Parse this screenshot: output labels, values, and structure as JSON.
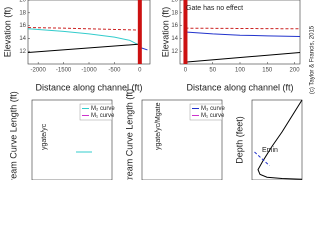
{
  "credit": "(c) Taylor & Francis, 2015",
  "chart_data": [
    {
      "type": "line",
      "xlabel": "Distance along channel (ft)",
      "ylabel": "Elevation (ft)",
      "xlim": [
        -2200,
        200
      ],
      "ylim": [
        10,
        20
      ],
      "xticks": [
        -2000,
        -1500,
        -1000,
        -500,
        0
      ],
      "yticks": [
        12,
        14,
        16,
        18,
        20
      ],
      "series": [
        {
          "color": "#cc2222",
          "dash": true,
          "x": [
            -2200,
            -1500,
            -1000,
            -500,
            0
          ],
          "values": [
            15.7,
            15.6,
            15.5,
            15.4,
            15.3
          ]
        },
        {
          "color": "#33cccc",
          "x": [
            -2200,
            -1500,
            -1000,
            -500,
            -200,
            -50
          ],
          "values": [
            15.5,
            15.1,
            14.7,
            14.2,
            13.7,
            13.1
          ]
        },
        {
          "color": "#000000",
          "x": [
            -2200,
            0
          ],
          "values": [
            11.8,
            13.1
          ]
        },
        {
          "color": "#2233cc",
          "x": [
            0,
            150
          ],
          "values": [
            12.6,
            12.2
          ]
        },
        {
          "color": "#cc1111",
          "width": 4,
          "x": [
            0,
            0
          ],
          "values": [
            10,
            20
          ]
        }
      ]
    },
    {
      "type": "line",
      "xlabel": "Distance along channel (ft)",
      "ylabel": "Elevation (ft)",
      "xlim": [
        -10,
        210
      ],
      "ylim": [
        10,
        20
      ],
      "xticks": [
        0,
        50,
        100,
        150,
        200
      ],
      "yticks": [
        12,
        14,
        16,
        18,
        20
      ],
      "annotations": [
        "Gate has no effect"
      ],
      "series": [
        {
          "color": "#cc2222",
          "dash": true,
          "x": [
            0,
            210
          ],
          "values": [
            15.6,
            15.5
          ]
        },
        {
          "color": "#2233cc",
          "x": [
            0,
            50,
            100,
            150,
            210
          ],
          "values": [
            15.0,
            14.7,
            14.5,
            14.4,
            14.3
          ]
        },
        {
          "color": "#000000",
          "x": [
            0,
            210
          ],
          "values": [
            10.3,
            11.8
          ]
        },
        {
          "color": "#cc1111",
          "width": 4,
          "x": [
            0,
            0
          ],
          "values": [
            10,
            20
          ]
        }
      ]
    },
    {
      "type": "line",
      "ylabel": "stream Curve Length (ft)",
      "xlim": [
        0,
        1
      ],
      "ylim": [
        0,
        1
      ],
      "legend": true,
      "annotations": [
        "ygate/yc"
      ],
      "series": [
        {
          "name": "M₂ curve",
          "color": "#33cccc",
          "x": [
            0.55,
            0.75
          ],
          "values": [
            0.35,
            0.35
          ]
        },
        {
          "name": "M₁ curve",
          "color": "#cc33cc",
          "x": [],
          "values": []
        }
      ]
    },
    {
      "type": "line",
      "ylabel": "nstream Curve Length (ft)",
      "xlim": [
        0,
        1
      ],
      "ylim": [
        0,
        1
      ],
      "legend": true,
      "annotations": [
        "ygate/yc/Mgate"
      ],
      "series": [
        {
          "name": "M₃ curve",
          "color": "#2233cc",
          "x": [],
          "values": []
        },
        {
          "name": "M₁ curve",
          "color": "#cc33cc",
          "x": [],
          "values": []
        }
      ]
    },
    {
      "type": "line",
      "ylabel": "Depth (feet)",
      "xlim": [
        0,
        1
      ],
      "ylim": [
        0,
        1
      ],
      "annotations": [
        "Emin"
      ],
      "series": [
        {
          "color": "#000000",
          "x": [
            1,
            0.8,
            0.6,
            0.4,
            0.22,
            0.12,
            0.16,
            0.3,
            0.6,
            1
          ],
          "values": [
            1,
            0.8,
            0.6,
            0.42,
            0.24,
            0.13,
            0.07,
            0.035,
            0.018,
            0.01
          ]
        },
        {
          "color": "#2233cc",
          "dash": true,
          "x": [
            0.05,
            0.35
          ],
          "values": [
            0.35,
            0.18
          ]
        }
      ]
    }
  ]
}
